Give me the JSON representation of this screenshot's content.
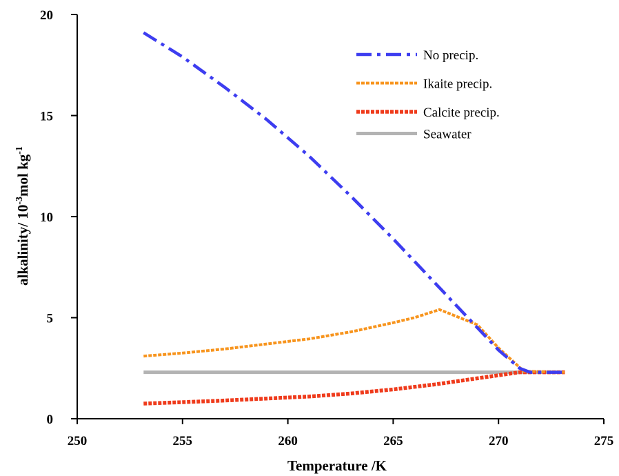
{
  "chart_data": {
    "type": "line",
    "xlabel": "Temperature /K",
    "ylabel": {
      "base": "alkalinity/ 10",
      "exp1": "-3",
      "mid": "mol kg",
      "exp2": "-1"
    },
    "xlim": [
      250,
      275
    ],
    "ylim": [
      0,
      20
    ],
    "xticks": [
      "250",
      "255",
      "260",
      "265",
      "270",
      "275"
    ],
    "yticks": [
      "0",
      "5",
      "10",
      "15",
      "20"
    ],
    "grid": false,
    "legend_position": "top-right",
    "series": [
      {
        "name": "No precip.",
        "color": "#3d3df0",
        "dash": "dash-dot",
        "x": [
          253.15,
          255,
          257,
          259,
          261,
          263,
          265,
          267,
          269,
          270,
          271,
          271.5,
          273.15
        ],
        "y": [
          19.1,
          17.9,
          16.4,
          14.8,
          13.0,
          11.0,
          8.9,
          6.7,
          4.5,
          3.4,
          2.5,
          2.3,
          2.3
        ]
      },
      {
        "name": "Ikaite precip.",
        "color": "#f7941d",
        "dash": "dotted",
        "x": [
          253.15,
          255,
          257,
          259,
          261,
          263,
          265,
          266,
          267.2,
          269,
          270,
          271.2,
          273.15
        ],
        "y": [
          3.1,
          3.25,
          3.45,
          3.7,
          3.95,
          4.3,
          4.75,
          5.0,
          5.4,
          4.65,
          3.5,
          2.35,
          2.3
        ]
      },
      {
        "name": "Calcite precip.",
        "color": "#ef3b1c",
        "dash": "dotted",
        "x": [
          253.15,
          255,
          257,
          259,
          261,
          263,
          265,
          267,
          269,
          271,
          273.15
        ],
        "y": [
          0.75,
          0.82,
          0.9,
          1.0,
          1.1,
          1.25,
          1.45,
          1.7,
          2.0,
          2.3,
          2.3
        ]
      },
      {
        "name": "Seawater",
        "color": "#b3b3b3",
        "dash": "solid",
        "x": [
          253.15,
          273.15
        ],
        "y": [
          2.3,
          2.3
        ]
      }
    ]
  }
}
